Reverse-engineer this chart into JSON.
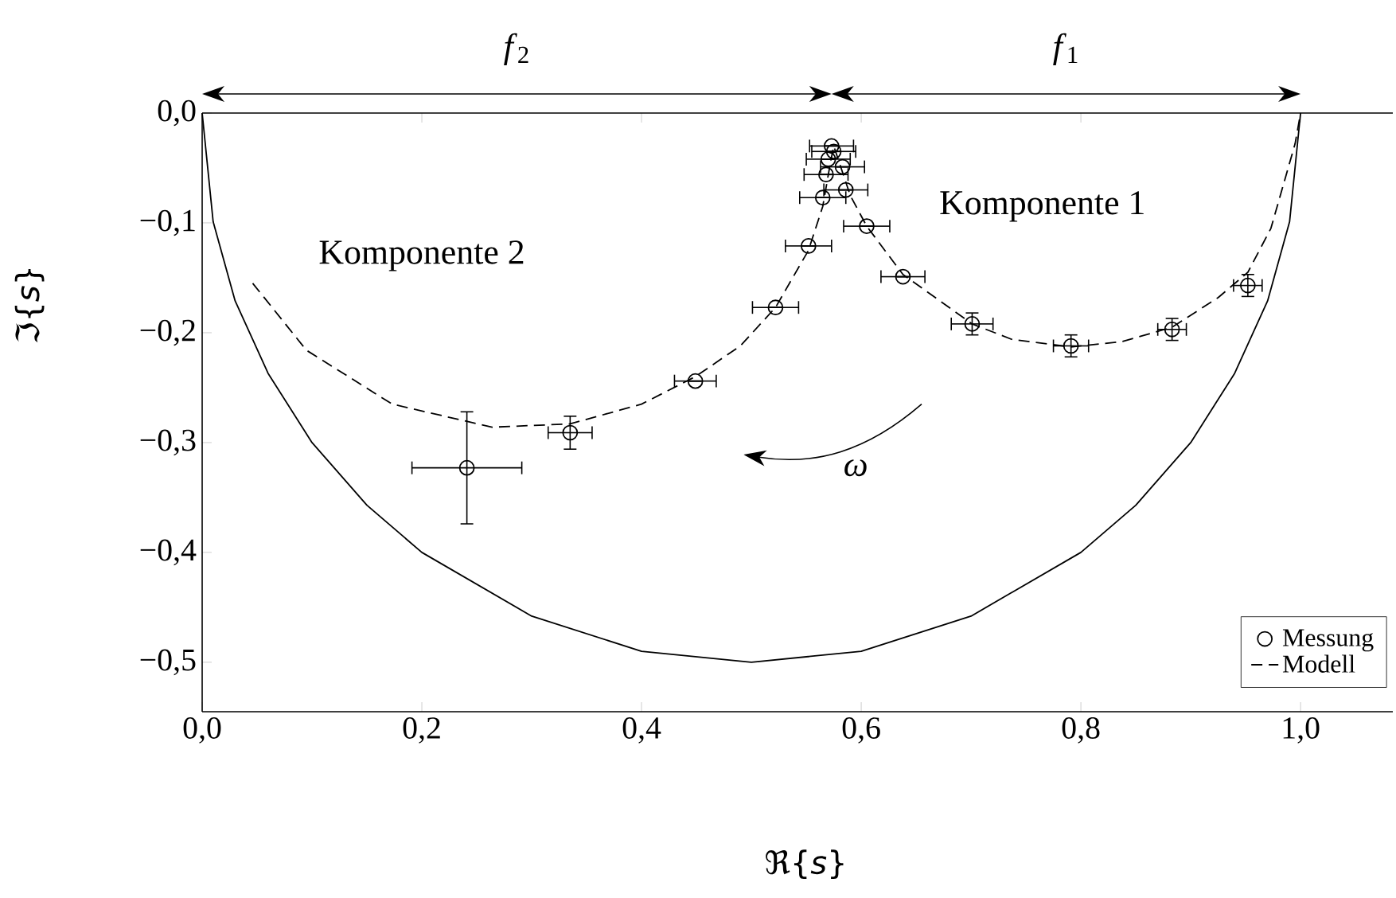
{
  "chart_data": {
    "type": "scatter",
    "xlabel": "ℜ{*s*}",
    "ylabel": "ℑ{*s*}",
    "xlim": [
      0,
      1.084
    ],
    "ylim": [
      -0.545,
      0
    ],
    "xticks": [
      {
        "value": 0,
        "label": "0,0"
      },
      {
        "value": 0.2,
        "label": "0,2"
      },
      {
        "value": 0.4,
        "label": "0,4"
      },
      {
        "value": 0.6,
        "label": "0,6"
      },
      {
        "value": 0.8,
        "label": "0,8"
      },
      {
        "value": 1.0,
        "label": "1,0"
      }
    ],
    "yticks": [
      {
        "value": 0,
        "label": "0,0"
      },
      {
        "value": -0.1,
        "label": "−0,1"
      },
      {
        "value": -0.2,
        "label": "−0,2"
      },
      {
        "value": -0.3,
        "label": "−0,3"
      },
      {
        "value": -0.4,
        "label": "−0,4"
      },
      {
        "value": -0.5,
        "label": "−0,5"
      }
    ],
    "legend": "bottom right",
    "annotations": [
      "Komponente 2",
      "Komponente 1",
      "*f*$_{2}$",
      "*f*$_{1}$",
      "*ω*"
    ],
    "series": [
      {
        "name": "Messung",
        "marker": "circle",
        "color": "#000000",
        "x": [
          0.952,
          0.883,
          0.791,
          0.701,
          0.638,
          0.605,
          0.586,
          0.583,
          0.573,
          0.575,
          0.57,
          0.568,
          0.565,
          0.552,
          0.522,
          0.449,
          0.335,
          0.241
        ],
        "values": [
          -0.157,
          -0.197,
          -0.212,
          -0.192,
          -0.149,
          -0.103,
          -0.07,
          -0.049,
          -0.03,
          -0.035,
          -0.042,
          -0.056,
          -0.077,
          -0.121,
          -0.177,
          -0.244,
          -0.291,
          -0.323
        ],
        "xerrors": [
          0.013,
          0.013,
          0.016,
          0.019,
          0.02,
          0.021,
          0.02,
          0.02,
          0.02,
          0.02,
          0.02,
          0.02,
          0.021,
          0.021,
          0.021,
          0.019,
          0.02,
          0.05
        ],
        "errors": [
          0.01,
          0.01,
          0.01,
          0.01,
          null,
          null,
          null,
          null,
          null,
          null,
          null,
          null,
          null,
          null,
          null,
          null,
          0.015,
          0.051
        ]
      },
      {
        "name": "Modell",
        "type": "line",
        "line_style": "dashed",
        "color": "#000000",
        "x": [
          0.046,
          0.095,
          0.173,
          0.264,
          0.335,
          0.4,
          0.449,
          0.49,
          0.522,
          0.552,
          0.565,
          0.572,
          0.575,
          0.58,
          0.59,
          0.605,
          0.638,
          0.701,
          0.737,
          0.791,
          0.838,
          0.883,
          0.925,
          0.952,
          0.973,
          0.995,
          1.0
        ],
        "values": [
          -0.155,
          -0.216,
          -0.265,
          -0.286,
          -0.283,
          -0.265,
          -0.24,
          -0.212,
          -0.177,
          -0.125,
          -0.085,
          -0.045,
          -0.03,
          -0.045,
          -0.075,
          -0.103,
          -0.147,
          -0.192,
          -0.206,
          -0.213,
          -0.208,
          -0.195,
          -0.168,
          -0.145,
          -0.105,
          -0.028,
          0
        ]
      },
      {
        "type": "line",
        "line_style": "solid",
        "color": "#000000",
        "x": [
          0,
          0.01,
          0.03,
          0.06,
          0.1,
          0.15,
          0.2,
          0.3,
          0.4,
          0.5,
          0.6,
          0.7,
          0.8,
          0.85,
          0.9,
          0.94,
          0.97,
          0.99,
          1.0
        ],
        "values": [
          0,
          -0.099,
          -0.171,
          -0.237,
          -0.3,
          -0.357,
          -0.4,
          -0.458,
          -0.49,
          -0.5,
          -0.49,
          -0.458,
          -0.4,
          -0.357,
          -0.3,
          -0.237,
          -0.171,
          -0.099,
          0
        ]
      }
    ]
  }
}
